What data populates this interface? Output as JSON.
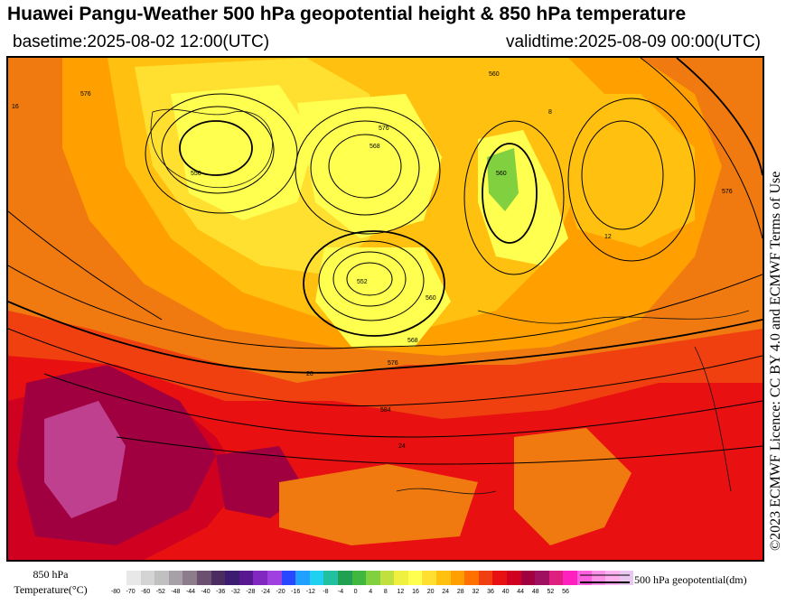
{
  "header": {
    "title": "Huawei Pangu-Weather 500 hPa geopotential height & 850 hPa temperature",
    "basetime": "basetime:2025-08-02 12:00(UTC)",
    "validtime": "validtime:2025-08-09 00:00(UTC)"
  },
  "license": "©2023 ECMWF Licence: CC BY 4.0 and ECMWF Terms of Use",
  "legend": {
    "label_line1": "850 hPa",
    "label_line2": "Temperature(°C)",
    "colors": [
      "#e8e8e8",
      "#d4d4d4",
      "#c0c0c0",
      "#a8a0a8",
      "#8c7c8c",
      "#6c5070",
      "#4c2c60",
      "#3c1c70",
      "#5a1890",
      "#8028c0",
      "#a040e0",
      "#2848ff",
      "#20a0ff",
      "#20d0f0",
      "#20c0a0",
      "#20a050",
      "#40b840",
      "#80d040",
      "#c0e040",
      "#f0f040",
      "#ffff50",
      "#ffe030",
      "#ffc010",
      "#ffa000",
      "#ff7000",
      "#f04010",
      "#e81010",
      "#d00020",
      "#a00040",
      "#a01060",
      "#e02080",
      "#ff20c0",
      "#ff60e0",
      "#ff90e8",
      "#ffb0f0",
      "#e8c8f0"
    ],
    "ticks": [
      "-80",
      "-70",
      "-60",
      "-52",
      "-48",
      "-44",
      "-40",
      "-36",
      "-32",
      "-28",
      "-24",
      "-20",
      "-16",
      "-12",
      "-8",
      "-4",
      "0",
      "4",
      "8",
      "12",
      "16",
      "20",
      "24",
      "28",
      "32",
      "36",
      "40",
      "44",
      "48",
      "52",
      "56"
    ],
    "line_label": "500 hPa geopotential(dm)"
  },
  "map": {
    "contour_labels": [
      "560",
      "576",
      "552",
      "556",
      "560",
      "568",
      "576",
      "584",
      "560",
      "576",
      "576",
      "568",
      "16",
      "20",
      "24",
      "12",
      "8"
    ]
  }
}
